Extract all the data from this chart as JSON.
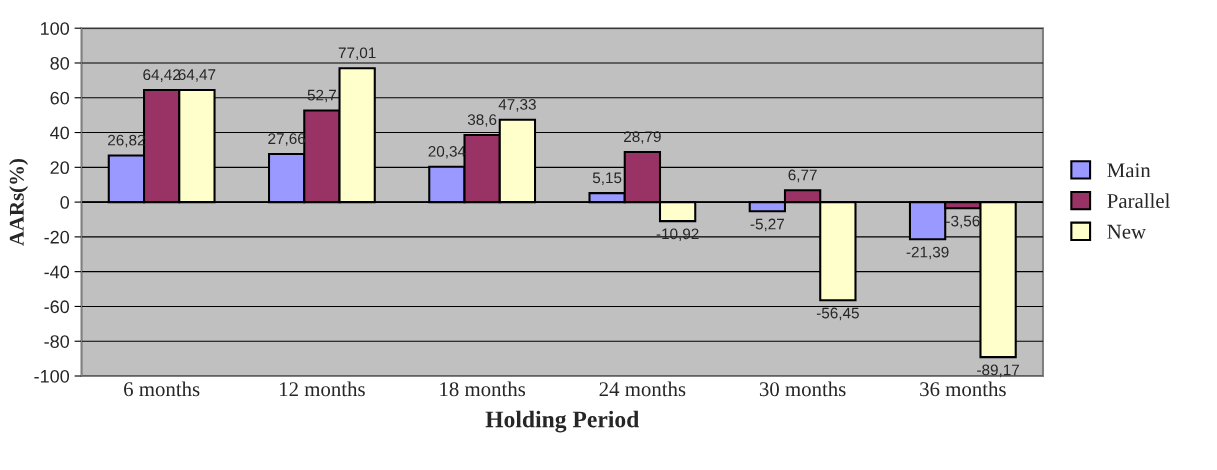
{
  "chart_data": {
    "type": "bar",
    "xlabel": "Holding Period",
    "ylabel": "AARs(%)",
    "categories": [
      "6 months",
      "12 months",
      "18 months",
      "24 months",
      "30 months",
      "36 months"
    ],
    "series": [
      {
        "name": "Main",
        "color": "#9999ff",
        "values": [
          26.82,
          27.66,
          20.34,
          5.15,
          -5.27,
          -21.39
        ],
        "value_labels": [
          "26,82",
          "27,66",
          "20,34",
          "5,15",
          "-5,27",
          "-21,39"
        ]
      },
      {
        "name": "Parallel",
        "color": "#993366",
        "values": [
          64.42,
          52.7,
          38.6,
          28.79,
          6.77,
          -3.56
        ],
        "value_labels": [
          "64,42",
          "52,7",
          "38,6",
          "28,79",
          "6,77",
          "-3,56"
        ]
      },
      {
        "name": "New",
        "color": "#ffffcc",
        "values": [
          64.47,
          77.01,
          47.33,
          -10.92,
          -56.45,
          -89.17
        ],
        "value_labels": [
          "64,47",
          "77,01",
          "47,33",
          "-10,92",
          "-56,45",
          "-89,17"
        ]
      }
    ],
    "ylim": [
      -100,
      100
    ],
    "yticks": [
      -100,
      -80,
      -60,
      -40,
      -20,
      0,
      20,
      40,
      60,
      80,
      100
    ],
    "grid": "y",
    "legend": "right"
  }
}
